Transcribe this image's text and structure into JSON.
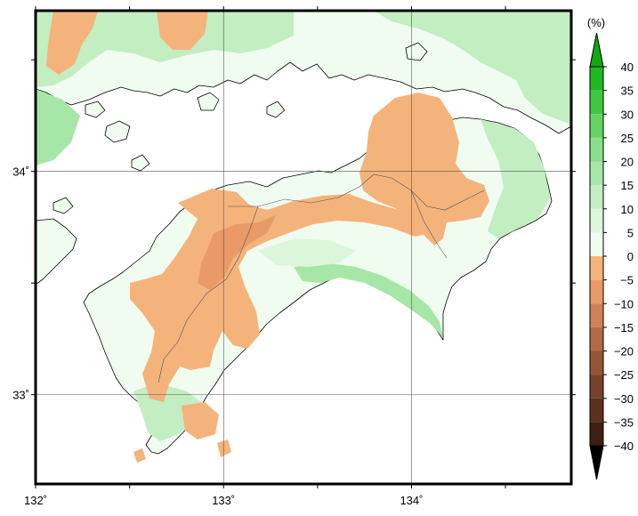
{
  "map": {
    "lon_range": [
      132,
      134.85
    ],
    "lat_range": [
      32.6,
      34.72
    ],
    "graticule_lon": [
      132,
      133,
      134
    ],
    "graticule_lat": [
      33,
      34
    ],
    "x_tick_labels": [
      {
        "lon": 132,
        "label": "132˚"
      },
      {
        "lon": 133,
        "label": "133˚"
      },
      {
        "lon": 134,
        "label": "134˚"
      }
    ],
    "y_tick_labels": [
      {
        "lat": 34,
        "label": "34˚"
      },
      {
        "lat": 33,
        "label": "33˚"
      }
    ]
  },
  "legend": {
    "unit": "(%)",
    "min": -40,
    "max": 40,
    "ticks": [
      {
        "value": 40,
        "label": "40"
      },
      {
        "value": 35,
        "label": "35"
      },
      {
        "value": 30,
        "label": "30"
      },
      {
        "value": 25,
        "label": "25"
      },
      {
        "value": 20,
        "label": "20"
      },
      {
        "value": 15,
        "label": "15"
      },
      {
        "value": 10,
        "label": "10"
      },
      {
        "value": 5,
        "label": "5"
      },
      {
        "value": 0,
        "label": "0"
      },
      {
        "value": -5,
        "label": "−5"
      },
      {
        "value": -10,
        "label": "−10"
      },
      {
        "value": -15,
        "label": "−15"
      },
      {
        "value": -20,
        "label": "−20"
      },
      {
        "value": -25,
        "label": "−25"
      },
      {
        "value": -30,
        "label": "−30"
      },
      {
        "value": -35,
        "label": "−35"
      },
      {
        "value": -40,
        "label": "−40"
      }
    ],
    "bins": [
      {
        "from": 35,
        "to": 40,
        "color": "#1fb81f"
      },
      {
        "from": 30,
        "to": 35,
        "color": "#3ec83e"
      },
      {
        "from": 25,
        "to": 30,
        "color": "#62d462"
      },
      {
        "from": 20,
        "to": 25,
        "color": "#8adf8a"
      },
      {
        "from": 15,
        "to": 20,
        "color": "#a6e6a6"
      },
      {
        "from": 10,
        "to": 15,
        "color": "#c2eec2"
      },
      {
        "from": 5,
        "to": 10,
        "color": "#dcf6dc"
      },
      {
        "from": 0,
        "to": 5,
        "color": "#f0fcf0"
      },
      {
        "from": -5,
        "to": 0,
        "color": "#f5b37c"
      },
      {
        "from": -10,
        "to": -5,
        "color": "#e99a66"
      },
      {
        "from": -15,
        "to": -10,
        "color": "#d08256"
      },
      {
        "from": -20,
        "to": -15,
        "color": "#b26a44"
      },
      {
        "from": -25,
        "to": -20,
        "color": "#945536"
      },
      {
        "from": -30,
        "to": -25,
        "color": "#77412a"
      },
      {
        "from": -35,
        "to": -30,
        "color": "#5b301e"
      },
      {
        "from": -40,
        "to": -35,
        "color": "#3e2012"
      }
    ],
    "over_color": "#11a811",
    "under_color": "#000000"
  },
  "colors": {
    "land_light": "#f0fcf0",
    "land_green1": "#dcf6dc",
    "land_green2": "#c2eec2",
    "land_green3": "#a6e6a6",
    "decrease1": "#f5b37c",
    "decrease2": "#e99a66",
    "sea": "#ffffff",
    "frame": "#000000"
  }
}
